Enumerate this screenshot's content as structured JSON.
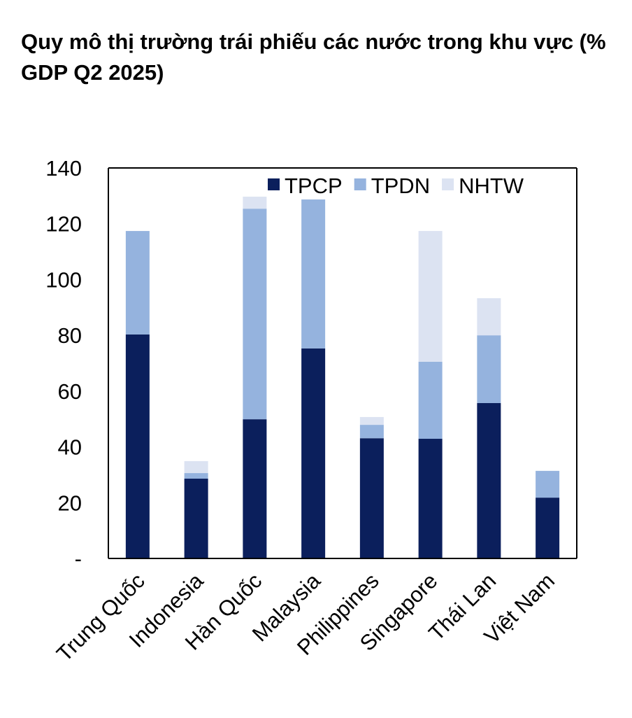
{
  "chart_data": {
    "type": "bar",
    "stacked": true,
    "title": "Quy mô thị trường trái phiếu các nước trong khu vực (% GDP Q2 2025)",
    "xlabel": "",
    "ylabel": "",
    "ylim": [
      0,
      140
    ],
    "yticks": [
      0,
      20,
      40,
      60,
      80,
      100,
      120,
      140
    ],
    "ytick_labels": [
      "-",
      "20",
      "40",
      "60",
      "80",
      "100",
      "120",
      "140"
    ],
    "grid": false,
    "legend_position": "top-right",
    "categories": [
      "Trung Quốc",
      "Indonesia",
      "Hàn Quốc",
      "Malaysia",
      "Philippines",
      "Singapore",
      "Thái Lan",
      "Việt Nam"
    ],
    "series": [
      {
        "name": "TPCP",
        "color": "#0b1f5c",
        "values": [
          80.3,
          28.6,
          49.9,
          75.3,
          43.1,
          42.9,
          55.7,
          21.8
        ]
      },
      {
        "name": "TPDN",
        "color": "#95b3de",
        "values": [
          37.1,
          2.0,
          75.5,
          53.4,
          4.8,
          27.6,
          24.3,
          9.6
        ]
      },
      {
        "name": "NHTW",
        "color": "#dce3f2",
        "values": [
          0,
          4.3,
          4.3,
          0,
          2.8,
          46.9,
          13.3,
          0
        ]
      }
    ]
  }
}
